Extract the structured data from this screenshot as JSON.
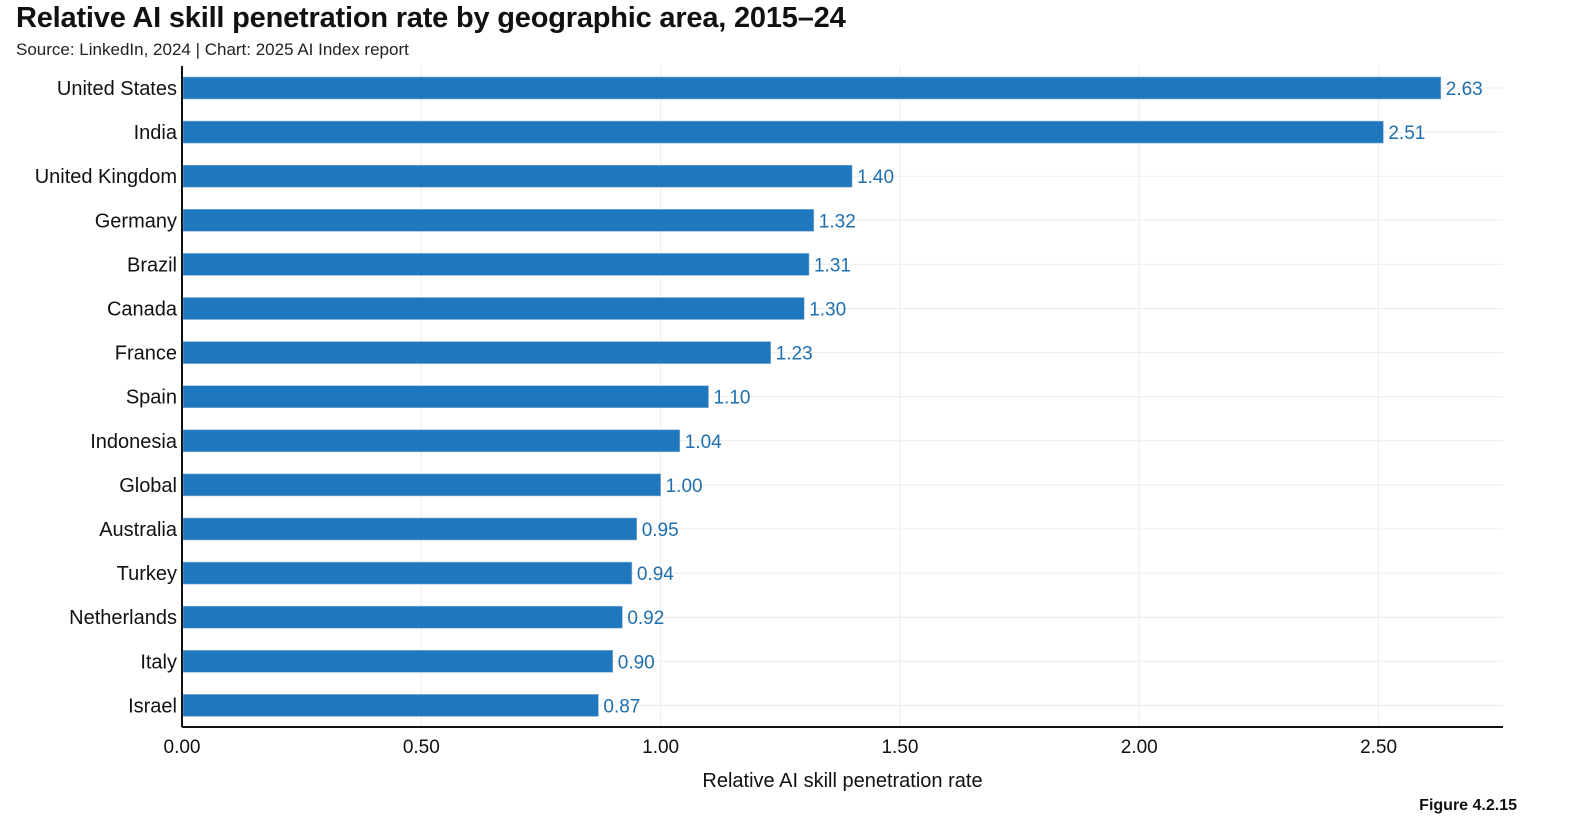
{
  "title": "Relative AI skill penetration rate by geographic area, 2015–24",
  "subtitle": "Source: LinkedIn, 2024 | Chart: 2025 AI Index report",
  "figure_label": "Figure 4.2.15",
  "colors": {
    "bar": "#1f77bd",
    "value_label": "#1f6fae",
    "grid": "#ececec",
    "axis": "#111111"
  },
  "chart_data": {
    "type": "bar",
    "orientation": "horizontal",
    "title": "Relative AI skill penetration rate by geographic area, 2015–24",
    "xlabel": "Relative AI skill penetration rate",
    "ylabel": "",
    "xlim": [
      0,
      2.76
    ],
    "xticks": [
      "0.00",
      "0.50",
      "1.00",
      "1.50",
      "2.00",
      "2.50"
    ],
    "xtick_values": [
      0,
      0.5,
      1.0,
      1.5,
      2.0,
      2.5
    ],
    "grid": true,
    "categories": [
      "United States",
      "India",
      "United Kingdom",
      "Germany",
      "Brazil",
      "Canada",
      "France",
      "Spain",
      "Indonesia",
      "Global",
      "Australia",
      "Turkey",
      "Netherlands",
      "Italy",
      "Israel"
    ],
    "values": [
      2.63,
      2.51,
      1.4,
      1.32,
      1.31,
      1.3,
      1.23,
      1.1,
      1.04,
      1.0,
      0.95,
      0.94,
      0.92,
      0.9,
      0.87
    ],
    "value_labels": [
      "2.63",
      "2.51",
      "1.40",
      "1.32",
      "1.31",
      "1.30",
      "1.23",
      "1.10",
      "1.04",
      "1.00",
      "0.95",
      "0.94",
      "0.92",
      "0.90",
      "0.87"
    ]
  }
}
